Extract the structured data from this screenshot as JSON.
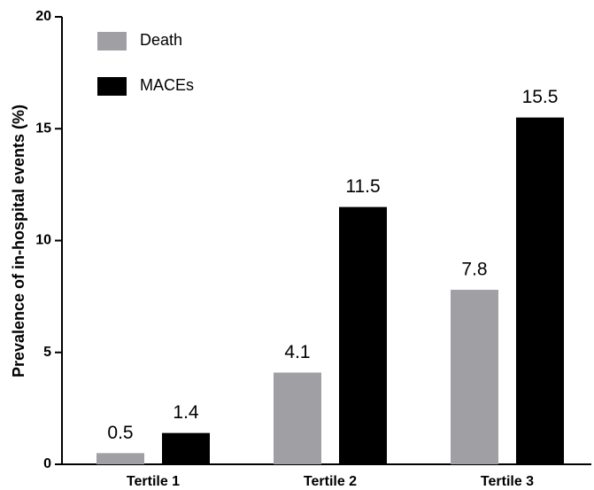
{
  "chart_data": {
    "type": "bar",
    "ylabel": "Prevalence of in-hospital events (%)",
    "categories": [
      "Tertile 1",
      "Tertile 2",
      "Tertile 3"
    ],
    "series": [
      {
        "name": "Death",
        "color": "#a0a0a4",
        "values": [
          0.5,
          4.1,
          7.8
        ]
      },
      {
        "name": "MACEs",
        "color": "#000000",
        "values": [
          1.4,
          11.5,
          15.5
        ]
      }
    ],
    "ylim": [
      0,
      20
    ],
    "yticks": [
      0,
      5,
      10,
      15,
      20
    ],
    "grid": false,
    "legend": "upper left"
  }
}
